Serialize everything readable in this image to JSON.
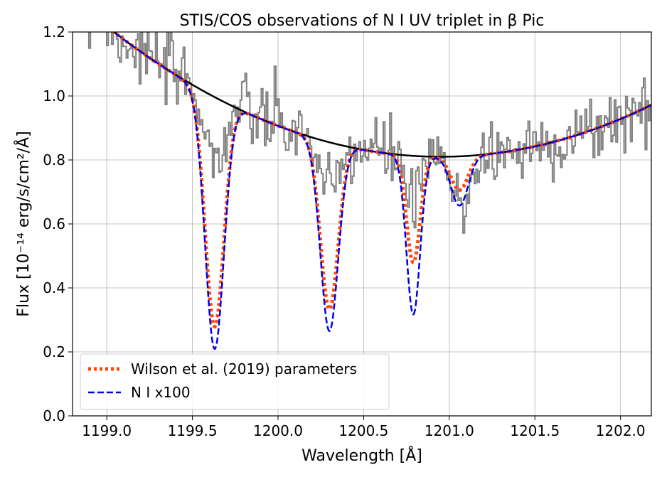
{
  "chart_data": {
    "type": "line",
    "title": "STIS/COS observations of N I UV triplet in β Pic",
    "xlabel": "Wavelength [Å]",
    "ylabel": "Flux [10⁻¹⁴ erg/s/cm²/Å]",
    "xlim": [
      1198.8,
      1202.18
    ],
    "ylim": [
      0.0,
      1.2
    ],
    "x_ticks": [
      1199.0,
      1199.5,
      1200.0,
      1200.5,
      1201.0,
      1201.5,
      1202.0
    ],
    "x_tick_labels": [
      "1199.0",
      "1199.5",
      "1200.0",
      "1200.5",
      "1201.0",
      "1201.5",
      "1202.0"
    ],
    "y_ticks": [
      0.0,
      0.2,
      0.4,
      0.6,
      0.8,
      1.0,
      1.2
    ],
    "y_tick_labels": [
      "0.0",
      "0.2",
      "0.4",
      "0.6",
      "0.8",
      "1.0",
      "1.2"
    ],
    "grid": true,
    "legend_position": "lower-left",
    "continuum": {
      "type": "quadratic",
      "min_x": 1200.95,
      "min_y": 0.81,
      "curvature": 0.107
    },
    "absorption_lines": [
      {
        "center": 1199.63,
        "sigma": 0.055
      },
      {
        "center": 1200.3,
        "sigma": 0.052
      },
      {
        "center": 1200.79,
        "sigma": 0.04
      },
      {
        "center": 1201.06,
        "sigma": 0.05
      }
    ],
    "series": [
      {
        "name": "Observed spectrum",
        "style": "steps",
        "color": "#808080",
        "in_legend": false,
        "depths": [
          0.2,
          0.2,
          0.2,
          0.2
        ],
        "noise_amplitude": 0.055
      },
      {
        "name": "Continuum",
        "style": "solid",
        "color": "#000000",
        "in_legend": false
      },
      {
        "name": "Wilson et al. (2019) parameters",
        "style": "dotted",
        "color": "#ff4500",
        "in_legend": true,
        "depths": [
          0.72,
          0.61,
          0.41,
          0.13
        ]
      },
      {
        "name": "N I x100",
        "style": "dashed",
        "color": "#0000ee",
        "in_legend": true,
        "depths": [
          0.79,
          0.69,
          0.61,
          0.19
        ]
      }
    ]
  }
}
